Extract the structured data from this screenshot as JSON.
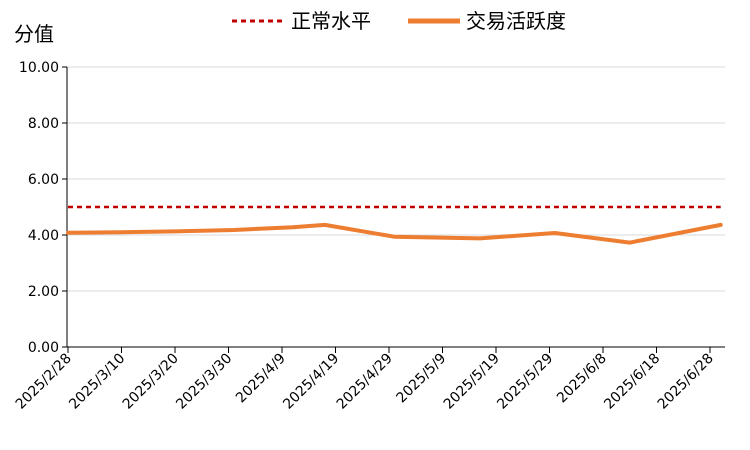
{
  "chart_data": {
    "type": "line",
    "ylabel": "分值",
    "ylim": [
      0,
      10
    ],
    "yticks": [
      "0.00",
      "2.00",
      "4.00",
      "6.00",
      "8.00",
      "10.00"
    ],
    "x_tick_labels": [
      "2025/2/28",
      "2025/3/10",
      "2025/3/20",
      "2025/3/30",
      "2025/4/9",
      "2025/4/19",
      "2025/4/29",
      "2025/5/9",
      "2025/5/19",
      "2025/5/29",
      "2025/6/8",
      "2025/6/18",
      "2025/6/28"
    ],
    "grid": "horizontal",
    "legend_position": "top",
    "series": [
      {
        "name": "正常水平",
        "style": "dashed",
        "color": "#C00000",
        "points": [
          {
            "x": "2025/2/28",
            "y": 5.0
          },
          {
            "x": "2025/6/30",
            "y": 5.0
          }
        ]
      },
      {
        "name": "交易活跃度",
        "style": "solid",
        "color": "#ED7D31",
        "points": [
          {
            "x": "2025/2/28",
            "y": 4.08
          },
          {
            "x": "2025/3/10",
            "y": 4.1
          },
          {
            "x": "2025/3/20",
            "y": 4.13
          },
          {
            "x": "2025/3/31",
            "y": 4.18
          },
          {
            "x": "2025/4/11",
            "y": 4.28
          },
          {
            "x": "2025/4/17",
            "y": 4.36
          },
          {
            "x": "2025/4/30",
            "y": 3.94
          },
          {
            "x": "2025/5/16",
            "y": 3.88
          },
          {
            "x": "2025/5/30",
            "y": 4.07
          },
          {
            "x": "2025/6/13",
            "y": 3.73
          },
          {
            "x": "2025/6/30",
            "y": 4.36
          }
        ]
      }
    ]
  }
}
